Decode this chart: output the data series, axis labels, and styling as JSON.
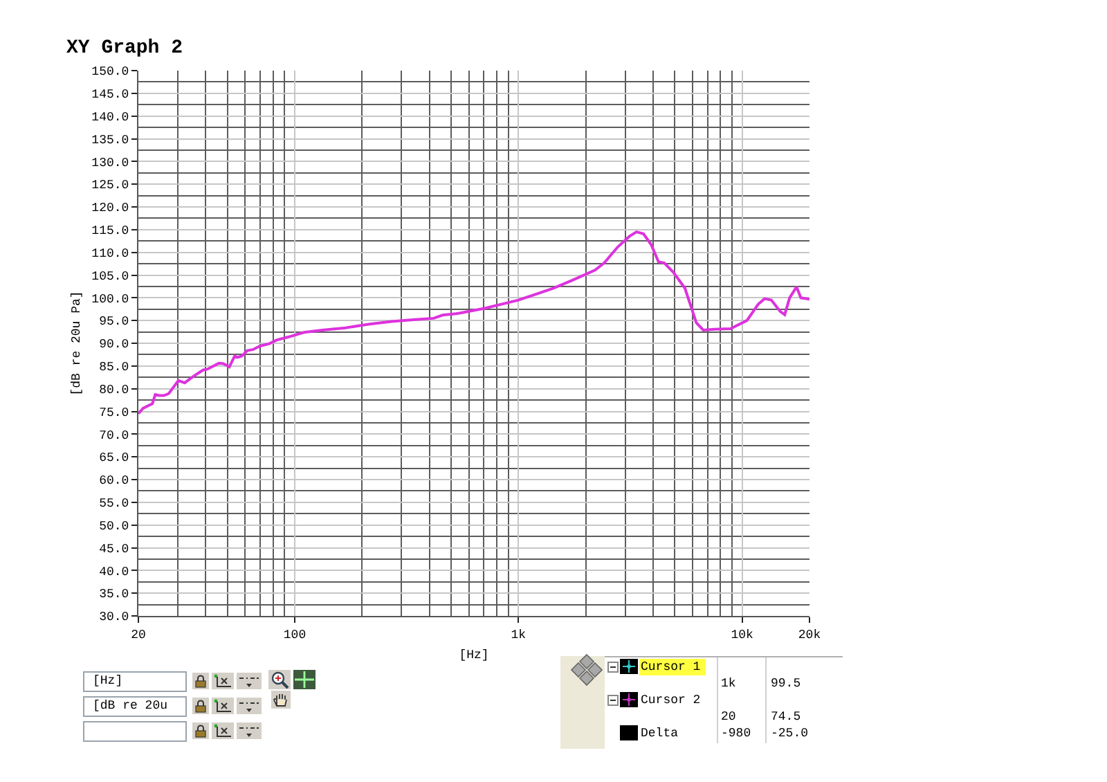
{
  "chart_data": {
    "type": "line",
    "title": "XY Graph 2",
    "xlabel": "[Hz]",
    "ylabel": "[dB re 20u Pa]",
    "log": "x",
    "grid": true,
    "color": "#dd33dd",
    "xlim": [
      20,
      20000
    ],
    "ylim": [
      30,
      150
    ],
    "xticks": [
      20,
      {
        "value": 30,
        "label": null
      },
      {
        "value": 40,
        "label": null
      },
      {
        "value": 50,
        "label": null
      },
      {
        "value": 60,
        "label": null
      },
      {
        "value": 70,
        "label": null
      },
      {
        "value": 80,
        "label": null
      },
      {
        "value": 90,
        "label": null
      },
      100,
      {
        "value": 200,
        "label": null
      },
      {
        "value": 300,
        "label": null
      },
      {
        "value": 400,
        "label": null
      },
      {
        "value": 500,
        "label": null
      },
      {
        "value": 600,
        "label": null
      },
      {
        "value": 700,
        "label": null
      },
      {
        "value": 800,
        "label": null
      },
      {
        "value": 900,
        "label": null
      },
      {
        "value": 1000,
        "label": "1k"
      },
      {
        "value": 2000,
        "label": null
      },
      {
        "value": 3000,
        "label": null
      },
      {
        "value": 4000,
        "label": null
      },
      {
        "value": 5000,
        "label": null
      },
      {
        "value": 6000,
        "label": null
      },
      {
        "value": 7000,
        "label": null
      },
      {
        "value": 8000,
        "label": null
      },
      {
        "value": 9000,
        "label": null
      },
      {
        "value": 10000,
        "label": "10k"
      },
      {
        "value": 20000,
        "label": "20k"
      }
    ],
    "yticks": [
      {
        "value": 30,
        "label": "30.0"
      },
      {
        "value": 32.5,
        "label": null
      },
      {
        "value": 35,
        "label": "35.0"
      },
      {
        "value": 37.5,
        "label": null
      },
      {
        "value": 40,
        "label": "40.0"
      },
      {
        "value": 42.5,
        "label": null
      },
      {
        "value": 45,
        "label": "45.0"
      },
      {
        "value": 47.5,
        "label": null
      },
      {
        "value": 50,
        "label": "50.0"
      },
      {
        "value": 52.5,
        "label": null
      },
      {
        "value": 55,
        "label": "55.0"
      },
      {
        "value": 57.5,
        "label": null
      },
      {
        "value": 60,
        "label": "60.0"
      },
      {
        "value": 62.5,
        "label": null
      },
      {
        "value": 65,
        "label": "65.0"
      },
      {
        "value": 67.5,
        "label": null
      },
      {
        "value": 70,
        "label": "70.0"
      },
      {
        "value": 72.5,
        "label": null
      },
      {
        "value": 75,
        "label": "75.0"
      },
      {
        "value": 77.5,
        "label": null
      },
      {
        "value": 80,
        "label": "80.0"
      },
      {
        "value": 82.5,
        "label": null
      },
      {
        "value": 85,
        "label": "85.0"
      },
      {
        "value": 87.5,
        "label": null
      },
      {
        "value": 90,
        "label": "90.0"
      },
      {
        "value": 92.5,
        "label": null
      },
      {
        "value": 95,
        "label": "95.0"
      },
      {
        "value": 97.5,
        "label": null
      },
      {
        "value": 100,
        "label": "100.0"
      },
      {
        "value": 102.5,
        "label": null
      },
      {
        "value": 105,
        "label": "105.0"
      },
      {
        "value": 107.5,
        "label": null
      },
      {
        "value": 110,
        "label": "110.0"
      },
      {
        "value": 112.5,
        "label": null
      },
      {
        "value": 115,
        "label": "115.0"
      },
      {
        "value": 117.5,
        "label": null
      },
      {
        "value": 120,
        "label": "120.0"
      },
      {
        "value": 122.5,
        "label": null
      },
      {
        "value": 125,
        "label": "125.0"
      },
      {
        "value": 127.5,
        "label": null
      },
      {
        "value": 130,
        "label": "130.0"
      },
      {
        "value": 132.5,
        "label": null
      },
      {
        "value": 135,
        "label": "135.0"
      },
      {
        "value": 137.5,
        "label": null
      },
      {
        "value": 140,
        "label": "140.0"
      },
      {
        "value": 142.5,
        "label": null
      },
      {
        "value": 145,
        "label": "145.0"
      },
      {
        "value": 147.5,
        "label": null
      },
      {
        "value": 150,
        "label": "150.0"
      }
    ],
    "x": [
      20,
      21,
      23.1,
      23.8,
      24.8,
      26,
      27.3,
      30.2,
      32.2,
      35.4,
      38.9,
      40.7,
      45.8,
      48,
      51,
      53.9,
      55.5,
      58,
      61.4,
      65,
      70,
      77,
      83,
      94,
      110,
      133,
      169,
      214,
      272,
      347,
      418,
      459,
      527,
      556,
      707,
      1000,
      1430,
      1730,
      2200,
      2420,
      2780,
      3130,
      3370,
      3620,
      3920,
      4230,
      4480,
      4930,
      5550,
      5960,
      6240,
      6700,
      7530,
      8870,
      10500,
      11800,
      12600,
      13500,
      14800,
      15500,
      16300,
      17500,
      18300,
      20000
    ],
    "values": [
      74.5,
      75.7,
      76.7,
      78.7,
      78.5,
      78.5,
      78.9,
      81.8,
      81.3,
      82.8,
      84.1,
      84.3,
      85.6,
      85.5,
      84.8,
      87.2,
      86.9,
      87.2,
      88.4,
      88.6,
      89.4,
      89.9,
      90.7,
      91.4,
      92.4,
      92.9,
      93.4,
      94.2,
      94.8,
      95.2,
      95.5,
      96.2,
      96.5,
      96.7,
      97.7,
      99.5,
      102.1,
      103.8,
      106.1,
      107.7,
      111.2,
      113.5,
      114.5,
      114.1,
      111.7,
      107.9,
      107.7,
      105.6,
      102.1,
      97.5,
      94.5,
      92.9,
      93.1,
      93.2,
      95.0,
      98.6,
      99.8,
      99.5,
      97.0,
      96.3,
      100.0,
      102.4,
      100.0,
      99.7
    ],
    "annotations": [
      "[Hz]",
      "[dB re 20u",
      "Cursor 1",
      "1k",
      "99.5",
      "Cursor 2",
      "20",
      "74.5",
      "Delta",
      "-980",
      "-25.0"
    ]
  }
}
